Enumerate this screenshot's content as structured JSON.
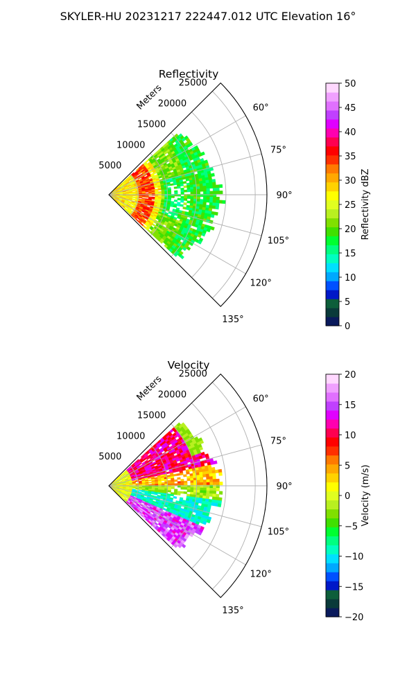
{
  "figure_title": "SKYLER-HU  20231217  222447.012 UTC Elevation 16°",
  "chart_data": [
    {
      "type": "heatmap",
      "projection": "polar-sector",
      "title": "Reflectivity",
      "radial_axis_label": "Meters",
      "radial_ticks": [
        5000,
        10000,
        15000,
        20000,
        25000
      ],
      "radial_tick_labels": [
        "5000",
        "10000",
        "15000",
        "20000",
        "25000"
      ],
      "radial_range": [
        0,
        27000
      ],
      "angle_ticks_deg": [
        60,
        75,
        90,
        105,
        120,
        135
      ],
      "angle_tick_labels": [
        "60°",
        "75°",
        "90°",
        "105°",
        "120°",
        "135°"
      ],
      "angle_range_deg": [
        45,
        135
      ],
      "grid": true,
      "data_range_m": [
        0,
        19000
      ],
      "colorbar": {
        "label": "Reflectivity dBZ",
        "range": [
          0,
          50
        ],
        "ticks": [
          0,
          5,
          10,
          15,
          20,
          25,
          30,
          35,
          40,
          45,
          50
        ],
        "tick_labels": [
          "0",
          "5",
          "10",
          "15",
          "20",
          "25",
          "30",
          "35",
          "40",
          "45",
          "50"
        ],
        "colors": [
          "#0a1a5c",
          "#0a3a3a",
          "#0d5e3a",
          "#0018c8",
          "#0050ff",
          "#00a8ff",
          "#00e0ff",
          "#00ffc0",
          "#00ff80",
          "#00ff30",
          "#40e000",
          "#80e000",
          "#b8f020",
          "#e0ff20",
          "#ffff00",
          "#ffd200",
          "#ffa800",
          "#ff7a00",
          "#ff3000",
          "#ff0000",
          "#ff0050",
          "#ff00b0",
          "#e000ff",
          "#c040ff",
          "#e070ff",
          "#f0a0ff",
          "#ffd8ff"
        ]
      }
    },
    {
      "type": "heatmap",
      "projection": "polar-sector",
      "title": "Velocity",
      "radial_axis_label": "Meters",
      "radial_ticks": [
        5000,
        10000,
        15000,
        20000,
        25000
      ],
      "radial_tick_labels": [
        "5000",
        "10000",
        "15000",
        "20000",
        "25000"
      ],
      "radial_range": [
        0,
        27000
      ],
      "angle_ticks_deg": [
        60,
        75,
        90,
        105,
        120,
        135
      ],
      "angle_tick_labels": [
        "60°",
        "75°",
        "90°",
        "105°",
        "120°",
        "135°"
      ],
      "angle_range_deg": [
        45,
        135
      ],
      "grid": true,
      "data_range_m": [
        0,
        19000
      ],
      "colorbar": {
        "label": "Velocity (m/s)",
        "range": [
          -20,
          20
        ],
        "ticks": [
          -20,
          -15,
          -10,
          -5,
          0,
          5,
          10,
          15,
          20
        ],
        "tick_labels": [
          "−20",
          "−15",
          "−10",
          "−5",
          "0",
          "5",
          "10",
          "15",
          "20"
        ],
        "colors": [
          "#0a1a5c",
          "#0a3a3a",
          "#0d5e3a",
          "#0018c8",
          "#0050ff",
          "#00a8ff",
          "#00e0ff",
          "#00ffc0",
          "#00ff80",
          "#00ff30",
          "#40e000",
          "#80e000",
          "#b8f020",
          "#e0ff20",
          "#ffff00",
          "#ffd200",
          "#ffa800",
          "#ff7a00",
          "#ff3000",
          "#ff0000",
          "#ff0050",
          "#ff00b0",
          "#e000ff",
          "#c040ff",
          "#e070ff",
          "#f0a0ff",
          "#ffd8ff"
        ]
      }
    }
  ]
}
